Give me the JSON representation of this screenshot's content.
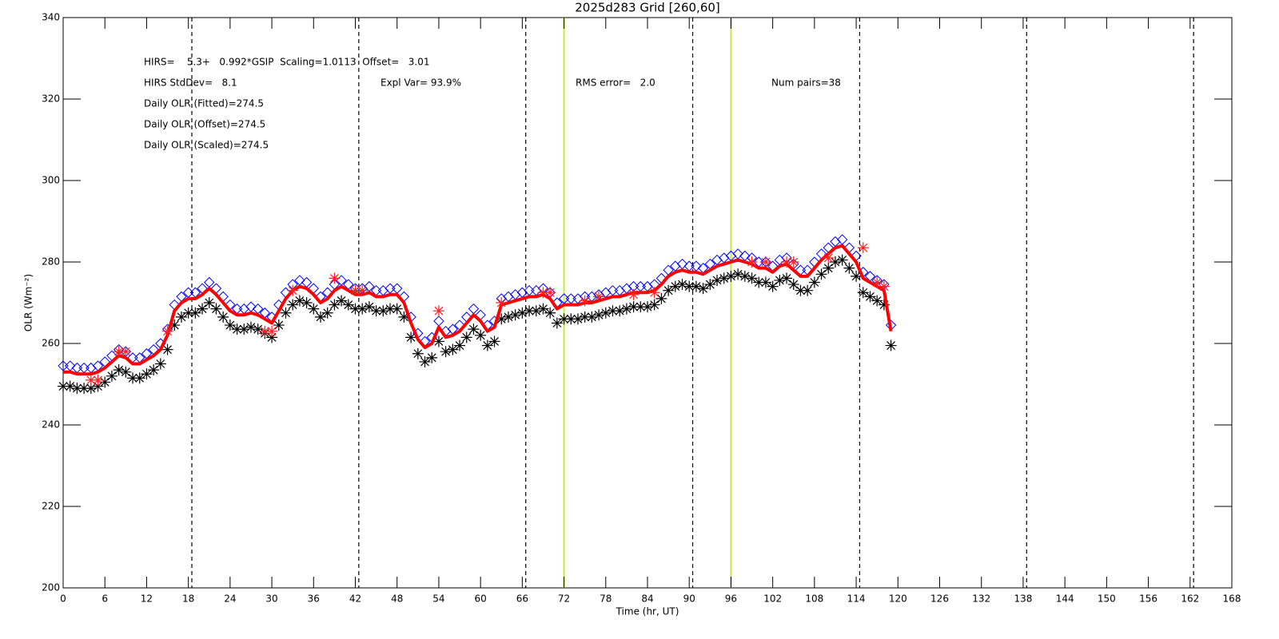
{
  "chart_data": {
    "type": "line",
    "title": "2025d283 Grid [260,60]",
    "xlabel": "Time (hr, UT)",
    "ylabel": "OLR (Wm⁻²)",
    "annotations": [
      "HIRS=    5.3+   0.992*GSIP  Scaling=1.0113  Offset=   3.01",
      "HIRS StdDev=   8.1",
      "Expl Var= 93.9%",
      "RMS error=   2.0",
      "Num pairs=38",
      "Daily OLR (Fitted)=274.5",
      "Daily OLR (Offset)=274.5",
      "Daily OLR (Scaled)=274.5"
    ],
    "xlim": [
      0,
      168
    ],
    "ylim": [
      200,
      340
    ],
    "xticks": [
      0,
      6,
      12,
      18,
      24,
      30,
      36,
      42,
      48,
      54,
      60,
      66,
      72,
      78,
      84,
      90,
      96,
      102,
      108,
      114,
      120,
      126,
      132,
      138,
      144,
      150,
      156,
      162,
      168
    ],
    "yticks": [
      200,
      220,
      240,
      260,
      280,
      300,
      320,
      340
    ],
    "vlines_dashed": [
      18.5,
      42.5,
      66.5,
      90.5,
      114.5,
      138.5,
      162.5
    ],
    "vlines_highlight": [
      72,
      96
    ],
    "vline_dashed_color": "#000000",
    "vline_highlight_color": "#c8ec3c",
    "x": [
      0,
      1,
      2,
      3,
      4,
      5,
      6,
      7,
      8,
      9,
      10,
      11,
      12,
      13,
      14,
      15,
      16,
      17,
      18,
      19,
      20,
      21,
      22,
      23,
      24,
      25,
      26,
      27,
      28,
      29,
      30,
      31,
      32,
      33,
      34,
      35,
      36,
      37,
      38,
      39,
      40,
      41,
      42,
      43,
      44,
      45,
      46,
      47,
      48,
      49,
      50,
      51,
      52,
      53,
      54,
      55,
      56,
      57,
      58,
      59,
      60,
      61,
      62,
      63,
      64,
      65,
      66,
      67,
      68,
      69,
      70,
      71,
      72,
      73,
      74,
      75,
      76,
      77,
      78,
      79,
      80,
      81,
      82,
      83,
      84,
      85,
      86,
      87,
      88,
      89,
      90,
      91,
      92,
      93,
      94,
      95,
      96,
      97,
      98,
      99,
      100,
      101,
      102,
      103,
      104,
      105,
      106,
      107,
      108,
      109,
      110,
      111,
      112,
      113,
      114,
      115,
      116,
      117,
      118,
      119
    ],
    "series": [
      {
        "color": "#0000ff",
        "marker": "diamond",
        "values": [
          254.5,
          254.5,
          254,
          254,
          254,
          254.5,
          255.5,
          257,
          258.5,
          258,
          256.5,
          256.5,
          257.5,
          258.5,
          260,
          263.5,
          269.5,
          271.5,
          272.5,
          272.5,
          273.5,
          275,
          273.5,
          271.5,
          269.5,
          268.5,
          268.5,
          269,
          268.5,
          267.5,
          266.5,
          269.5,
          272.5,
          274.5,
          275.5,
          275,
          273.5,
          271.5,
          272.5,
          274.5,
          275.5,
          274.5,
          273.5,
          273.5,
          274,
          273,
          273,
          273.5,
          273.5,
          271.5,
          266.5,
          262.5,
          260.5,
          261.5,
          265.5,
          263,
          263.5,
          264.5,
          266.5,
          268.5,
          267,
          264.5,
          265.5,
          271,
          271.5,
          272,
          272.5,
          273,
          273,
          273.5,
          272.5,
          270,
          271,
          271,
          271,
          271.5,
          271.5,
          272,
          272.5,
          273,
          273,
          273.5,
          274,
          274,
          274,
          274.5,
          276,
          278,
          279,
          279.5,
          279,
          279,
          278.5,
          279.5,
          280.5,
          281,
          281.5,
          282,
          281.5,
          281,
          280,
          280,
          279,
          280.5,
          281,
          279.5,
          278,
          278,
          280,
          282,
          283.5,
          285,
          285.5,
          283.5,
          281.5,
          277.5,
          276.5,
          275.5,
          274.5,
          264.5
        ]
      },
      {
        "color": "#000000",
        "marker": "asterisk",
        "values": [
          249.5,
          249.5,
          249,
          249,
          249,
          249.5,
          250.5,
          252,
          253.5,
          253,
          251.5,
          251.5,
          252.5,
          253.5,
          255,
          258.5,
          264.5,
          266.5,
          267.5,
          267.5,
          268.5,
          270,
          268.5,
          266.5,
          264.5,
          263.5,
          263.5,
          264,
          263.5,
          262.5,
          261.5,
          264.5,
          267.5,
          269.5,
          270.5,
          270,
          268.5,
          266.5,
          267.5,
          269.5,
          270.5,
          269.5,
          268.5,
          268.5,
          269,
          268,
          268,
          268.5,
          268.5,
          266.5,
          261.5,
          257.5,
          255.5,
          256.5,
          260.5,
          258,
          258.5,
          259.5,
          261.5,
          263.5,
          262,
          259.5,
          260.5,
          266,
          266.5,
          267,
          267.5,
          268,
          268,
          268.5,
          267.5,
          265,
          266,
          266,
          266,
          266.5,
          266.5,
          267,
          267.5,
          268,
          268,
          268.5,
          269,
          269,
          269,
          269.5,
          271,
          273,
          274,
          274.5,
          274,
          274,
          273.5,
          274.5,
          275.5,
          276,
          276.5,
          277,
          276.5,
          276,
          275,
          275,
          274,
          275.5,
          276,
          274.5,
          273,
          273,
          275,
          277,
          278.5,
          280,
          280.5,
          278.5,
          276.5,
          272.5,
          271.5,
          270.5,
          269.5,
          259.5
        ]
      },
      {
        "color": "#ff0000",
        "marker": "line",
        "values": [
          253,
          253,
          252.5,
          252.5,
          252.5,
          253,
          254,
          255.5,
          257,
          256.5,
          255,
          255,
          256,
          257,
          258.5,
          262,
          268,
          270,
          271,
          271,
          272,
          273.5,
          272,
          270,
          268,
          267,
          267,
          267.5,
          267,
          266,
          265,
          268,
          271,
          273,
          274,
          273.5,
          272,
          270,
          271,
          273,
          274,
          273,
          272,
          272,
          272.5,
          271.5,
          271.5,
          272,
          272,
          270,
          265,
          261,
          259,
          260,
          264,
          261.5,
          262,
          263,
          265,
          267,
          265.5,
          263,
          264,
          269.5,
          270,
          270.5,
          271,
          271.5,
          271.5,
          272,
          271,
          268.5,
          269.5,
          269.5,
          269.5,
          270,
          270,
          270.5,
          271,
          271.5,
          271.5,
          272,
          272.5,
          272.5,
          272.5,
          273,
          274.5,
          276.5,
          277.5,
          278,
          277.5,
          277.5,
          277,
          278,
          279,
          279.5,
          280,
          280.5,
          280,
          279.5,
          278.5,
          278.5,
          277.5,
          279,
          279.5,
          278,
          276.5,
          276.5,
          278.5,
          280.5,
          282,
          283.5,
          284,
          282,
          280,
          276,
          275,
          274,
          273,
          263
        ]
      },
      {
        "color": "#ff2020",
        "marker": "asterisk",
        "x": [
          4,
          5,
          8,
          9,
          15,
          29,
          30,
          33,
          39,
          42,
          43,
          54,
          63,
          69,
          70,
          75,
          77,
          82,
          85,
          99,
          101,
          104,
          105,
          110,
          115,
          117,
          118
        ],
        "values": [
          251,
          251,
          258,
          258,
          263,
          263,
          263,
          273,
          276,
          273,
          273,
          268,
          270,
          272.5,
          272.5,
          270.5,
          271.5,
          272,
          272.5,
          280,
          280,
          280,
          280,
          281,
          283.5,
          275,
          274
        ]
      }
    ]
  }
}
